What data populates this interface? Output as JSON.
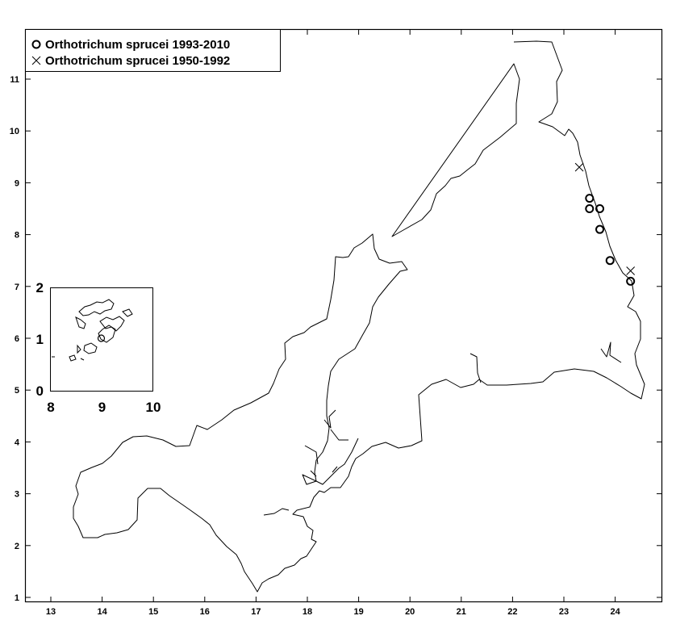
{
  "chart_data": {
    "type": "scatter",
    "title": "",
    "xlabel": "",
    "ylabel": "",
    "xlim": [
      12.6,
      25.2
    ],
    "ylim": [
      0.9,
      11.9
    ],
    "x_ticks": [
      "13",
      "14",
      "15",
      "16",
      "17",
      "18",
      "19",
      "20",
      "21",
      "22",
      "23",
      "24"
    ],
    "y_ticks": [
      "1",
      "2",
      "3",
      "4",
      "5",
      "6",
      "7",
      "8",
      "9",
      "10",
      "11"
    ],
    "legend_position": "top-left",
    "series": [
      {
        "name": "Orthotrichum sprucei 1993-2010",
        "marker": "circle",
        "points": [
          {
            "x": 23.5,
            "y": 8.7
          },
          {
            "x": 23.5,
            "y": 8.5
          },
          {
            "x": 23.7,
            "y": 8.5
          },
          {
            "x": 23.7,
            "y": 8.1
          },
          {
            "x": 23.9,
            "y": 7.5
          },
          {
            "x": 24.3,
            "y": 7.1
          }
        ]
      },
      {
        "name": "Orthotrichum sprucei 1950-1992",
        "marker": "x",
        "points": [
          {
            "x": 23.3,
            "y": 9.3
          },
          {
            "x": 24.3,
            "y": 7.3
          }
        ]
      }
    ],
    "inset": {
      "xlim": [
        8,
        10
      ],
      "ylim": [
        0,
        2
      ],
      "x_ticks": [
        "8",
        "9",
        "10"
      ],
      "y_ticks": [
        "0",
        "1",
        "2"
      ],
      "points": [
        {
          "x": 9.0,
          "y": 1.0,
          "marker": "circle"
        }
      ]
    }
  }
}
